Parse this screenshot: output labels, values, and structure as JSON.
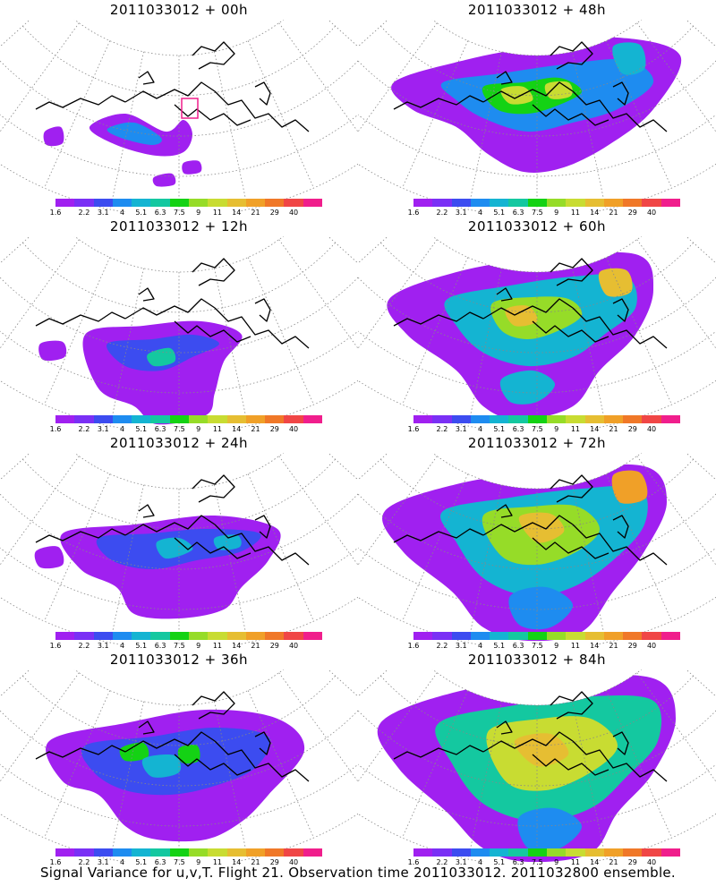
{
  "panels": [
    {
      "title": "2011033012 + 00h",
      "level": 0
    },
    {
      "title": "2011033012 + 48h",
      "level": 4
    },
    {
      "title": "2011033012 + 12h",
      "level": 1
    },
    {
      "title": "2011033012 + 60h",
      "level": 5
    },
    {
      "title": "2011033012 + 24h",
      "level": 2
    },
    {
      "title": "2011033012 + 72h",
      "level": 6
    },
    {
      "title": "2011033012 + 36h",
      "level": 3
    },
    {
      "title": "2011033012 + 84h",
      "level": 7
    }
  ],
  "colorbar": {
    "colors": [
      "#a020f0",
      "#7a30f5",
      "#3c4cf0",
      "#1e8cf0",
      "#14b4d2",
      "#14c8a0",
      "#14d214",
      "#96dc28",
      "#c8dc32",
      "#e6be32",
      "#f0a028",
      "#f07828",
      "#f04646",
      "#f01e8c"
    ],
    "labels": [
      "1.6",
      "2.2",
      "3.1",
      "4",
      "5.1",
      "6.3",
      "7.5",
      "9",
      "11",
      "14",
      "21",
      "29",
      "40"
    ]
  },
  "footer": "Signal Variance for u,v,T. Flight 21. Observation time 2011033012. 2011032800 ensemble."
}
